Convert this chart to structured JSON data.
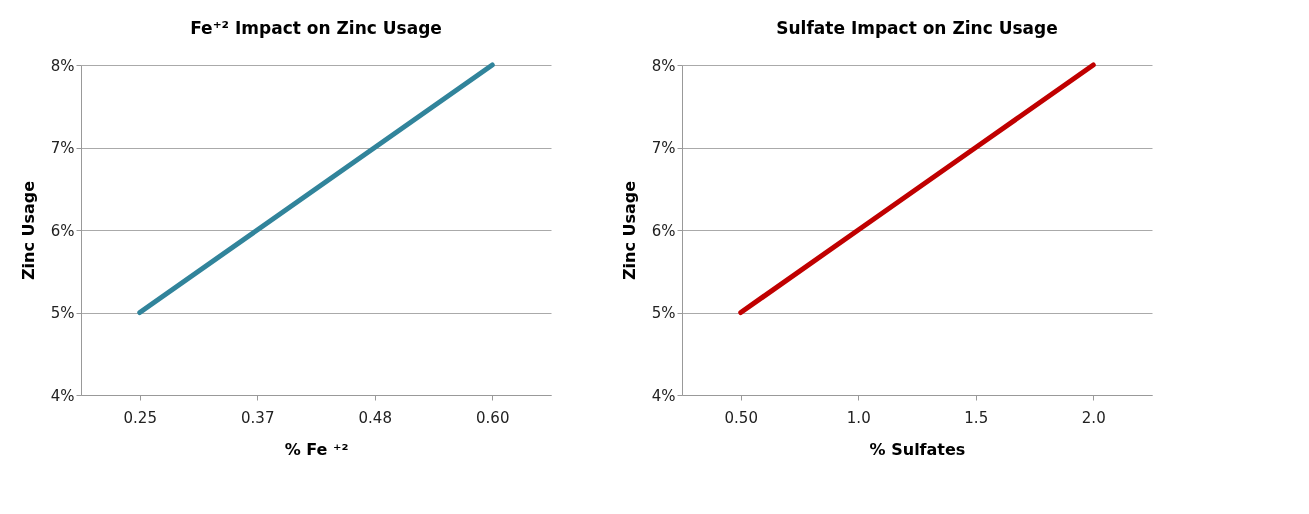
{
  "chart_data": [
    {
      "type": "line",
      "title": "Fe⁺² Impact on Zinc Usage",
      "xlabel": "% Fe ⁺²",
      "ylabel": "Zinc Usage",
      "categories": [
        "0.25",
        "0.37",
        "0.48",
        "0.60"
      ],
      "series": [
        {
          "color": "#31849b",
          "values": [
            5,
            6,
            7,
            8
          ]
        }
      ],
      "ylim": [
        4,
        8
      ],
      "yticks": [
        {
          "value": 4,
          "label": "4%"
        },
        {
          "value": 5,
          "label": "5%"
        },
        {
          "value": 6,
          "label": "6%"
        },
        {
          "value": 7,
          "label": "7%"
        },
        {
          "value": 8,
          "label": "8%"
        }
      ],
      "grid": "y"
    },
    {
      "type": "line",
      "title": "Sulfate Impact on Zinc Usage",
      "xlabel": "% Sulfates",
      "ylabel": "Zinc Usage",
      "categories": [
        "0.50",
        "1.0",
        "1.5",
        "2.0"
      ],
      "series": [
        {
          "color": "#c00000",
          "values": [
            5,
            6,
            7,
            8
          ]
        }
      ],
      "ylim": [
        4,
        8
      ],
      "yticks": [
        {
          "value": 4,
          "label": "4%"
        },
        {
          "value": 5,
          "label": "5%"
        },
        {
          "value": 6,
          "label": "6%"
        },
        {
          "value": 7,
          "label": "7%"
        },
        {
          "value": 8,
          "label": "8%"
        }
      ],
      "grid": "y"
    }
  ]
}
